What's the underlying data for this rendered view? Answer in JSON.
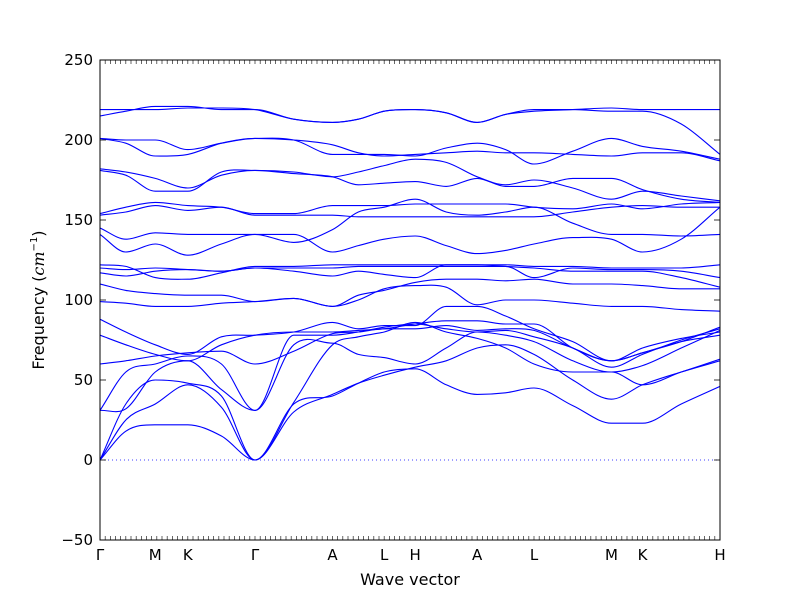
{
  "chart_data": {
    "type": "line",
    "title": "",
    "xlabel": "Wave vector",
    "ylabel": "Frequency (cm⁻¹)",
    "ylabel_parts": {
      "prefix": "Frequency (",
      "unit": "cm",
      "exponent": "−1",
      "suffix": ")"
    },
    "ylim": [
      -50,
      250
    ],
    "yticks": [
      -50,
      0,
      50,
      100,
      150,
      200,
      250
    ],
    "ytick_labels": [
      "−50",
      "0",
      "50",
      "100",
      "150",
      "200",
      "250"
    ],
    "xlim": [
      0,
      12
    ],
    "high_symmetry_points": [
      {
        "label": "Γ",
        "x": 0.0
      },
      {
        "label": "M",
        "x": 1.07
      },
      {
        "label": "K",
        "x": 1.7
      },
      {
        "label": "Γ",
        "x": 3.0
      },
      {
        "label": "A",
        "x": 4.5
      },
      {
        "label": "L",
        "x": 5.5
      },
      {
        "label": "H",
        "x": 6.1
      },
      {
        "label": "A",
        "x": 7.3
      },
      {
        "label": "L",
        "x": 8.4
      },
      {
        "label": "M",
        "x": 9.9
      },
      {
        "label": "K",
        "x": 10.5
      },
      {
        "label": "H",
        "x": 12.0
      }
    ],
    "zero_line": {
      "y": 0,
      "style": "dotted"
    },
    "line_color": "#0000ff",
    "x": [
      0,
      0.5,
      1.07,
      1.7,
      2.35,
      3.0,
      3.75,
      4.5,
      5.0,
      5.5,
      6.1,
      6.7,
      7.3,
      7.85,
      8.4,
      9.15,
      9.9,
      10.5,
      11.25,
      12.0
    ],
    "series": [
      {
        "values": [
          0,
          18,
          22,
          22,
          15,
          0,
          35,
          40,
          48,
          55,
          57,
          47,
          41,
          42,
          45,
          34,
          23,
          23,
          35,
          46
        ]
      },
      {
        "values": [
          0,
          25,
          35,
          47,
          33,
          0,
          30,
          41,
          48,
          53,
          58,
          62,
          70,
          72,
          66,
          50,
          38,
          47,
          55,
          62
        ]
      },
      {
        "values": [
          0,
          35,
          50,
          48,
          40,
          0,
          36,
          72,
          77,
          80,
          86,
          80,
          76,
          70,
          60,
          55,
          55,
          47,
          55,
          63
        ]
      },
      {
        "values": [
          31,
          32,
          55,
          62,
          44,
          31,
          72,
          73,
          66,
          64,
          60,
          70,
          80,
          78,
          74,
          62,
          55,
          59,
          70,
          81
        ]
      },
      {
        "values": [
          31,
          55,
          60,
          65,
          60,
          31,
          78,
          78,
          80,
          83,
          85,
          82,
          80,
          81,
          77,
          70,
          58,
          66,
          75,
          82
        ]
      },
      {
        "values": [
          60,
          62,
          65,
          67,
          68,
          60,
          68,
          79,
          80,
          82,
          82,
          84,
          81,
          82,
          81,
          70,
          62,
          67,
          74,
          83
        ]
      },
      {
        "values": [
          78,
          72,
          66,
          62,
          72,
          78,
          80,
          80,
          81,
          82,
          85,
          87,
          87,
          85,
          85,
          70,
          62,
          70,
          76,
          80
        ]
      },
      {
        "values": [
          88,
          80,
          72,
          66,
          77,
          78,
          80,
          86,
          82,
          84,
          84,
          96,
          96,
          90,
          82,
          74,
          62,
          67,
          74,
          78
        ]
      },
      {
        "values": [
          99,
          98,
          96,
          96,
          98,
          99,
          101,
          96,
          100,
          107,
          109,
          108,
          97,
          100,
          100,
          98,
          96,
          96,
          94,
          93
        ]
      },
      {
        "values": [
          110,
          106,
          104,
          103,
          103,
          99,
          101,
          96,
          103,
          106,
          111,
          113,
          113,
          112,
          113,
          110,
          110,
          109,
          107,
          107
        ]
      },
      {
        "values": [
          117,
          115,
          118,
          119,
          118,
          120,
          118,
          115,
          118,
          116,
          114,
          122,
          122,
          121,
          120,
          118,
          118,
          118,
          114,
          108
        ]
      },
      {
        "values": [
          120,
          119,
          120,
          119,
          118,
          120,
          120,
          120,
          121,
          121,
          121,
          121,
          121,
          121,
          114,
          120,
          119,
          119,
          118,
          114
        ]
      },
      {
        "values": [
          122,
          121,
          114,
          113,
          117,
          121,
          121,
          122,
          122,
          122,
          122,
          122,
          122,
          122,
          121,
          121,
          120,
          120,
          120,
          122
        ]
      },
      {
        "values": [
          141,
          130,
          135,
          128,
          135,
          141,
          141,
          130,
          134,
          138,
          140,
          134,
          129,
          131,
          135,
          139,
          138,
          130,
          138,
          158
        ]
      },
      {
        "values": [
          145,
          138,
          142,
          141,
          141,
          141,
          136,
          144,
          155,
          158,
          163,
          155,
          153,
          155,
          158,
          148,
          141,
          141,
          140,
          141
        ]
      },
      {
        "values": [
          153,
          155,
          159,
          156,
          158,
          153,
          153,
          153,
          152,
          152,
          152,
          152,
          152,
          152,
          152,
          155,
          158,
          159,
          158,
          158
        ]
      },
      {
        "values": [
          154,
          158,
          161,
          159,
          158,
          154,
          154,
          159,
          159,
          159,
          160,
          160,
          160,
          160,
          158,
          157,
          160,
          157,
          160,
          161
        ]
      },
      {
        "values": [
          181,
          178,
          168,
          168,
          180,
          181,
          180,
          177,
          180,
          184,
          188,
          186,
          177,
          172,
          175,
          170,
          163,
          168,
          165,
          162
        ]
      },
      {
        "values": [
          182,
          180,
          176,
          170,
          178,
          181,
          179,
          177,
          172,
          173,
          174,
          171,
          176,
          171,
          171,
          176,
          176,
          169,
          163,
          161
        ]
      },
      {
        "values": [
          201,
          198,
          190,
          191,
          198,
          201,
          200,
          197,
          192,
          190,
          191,
          192,
          193,
          192,
          192,
          191,
          190,
          192,
          192,
          187
        ]
      },
      {
        "values": [
          201,
          200,
          200,
          194,
          198,
          201,
          200,
          191,
          191,
          191,
          190,
          195,
          198,
          194,
          185,
          193,
          201,
          196,
          193,
          188
        ]
      },
      {
        "values": [
          215,
          218,
          221,
          221,
          219,
          219,
          213,
          211,
          213,
          218,
          219,
          217,
          211,
          216,
          218,
          219,
          220,
          219,
          219,
          219
        ]
      },
      {
        "values": [
          219,
          219,
          219,
          220,
          220,
          219,
          213,
          211,
          213,
          218,
          219,
          217,
          211,
          216,
          219,
          219,
          218,
          218,
          210,
          191
        ]
      }
    ]
  }
}
